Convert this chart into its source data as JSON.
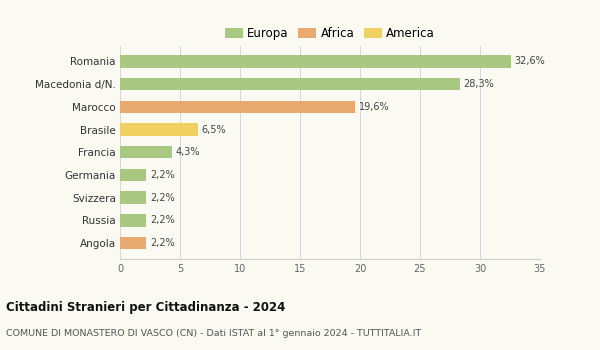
{
  "categories": [
    "Romania",
    "Macedonia d/N.",
    "Marocco",
    "Brasile",
    "Francia",
    "Germania",
    "Svizzera",
    "Russia",
    "Angola"
  ],
  "values": [
    32.6,
    28.3,
    19.6,
    6.5,
    4.3,
    2.2,
    2.2,
    2.2,
    2.2
  ],
  "labels": [
    "32,6%",
    "28,3%",
    "19,6%",
    "6,5%",
    "4,3%",
    "2,2%",
    "2,2%",
    "2,2%",
    "2,2%"
  ],
  "colors": [
    "#a8c882",
    "#a8c882",
    "#e8aa70",
    "#f0d060",
    "#a8c882",
    "#a8c882",
    "#a8c882",
    "#a8c882",
    "#e8aa70"
  ],
  "legend_labels": [
    "Europa",
    "Africa",
    "America"
  ],
  "legend_colors": [
    "#a8c882",
    "#e8aa70",
    "#f0d060"
  ],
  "title1": "Cittadini Stranieri per Cittadinanza - 2024",
  "title2": "COMUNE DI MONASTERO DI VASCO (CN) - Dati ISTAT al 1° gennaio 2024 - TUTTITALIA.IT",
  "xlim": [
    0,
    35
  ],
  "xticks": [
    0,
    5,
    10,
    15,
    20,
    25,
    30,
    35
  ],
  "background_color": "#fafaf2",
  "bar_height": 0.55,
  "grid_color": "#d0d0d0"
}
